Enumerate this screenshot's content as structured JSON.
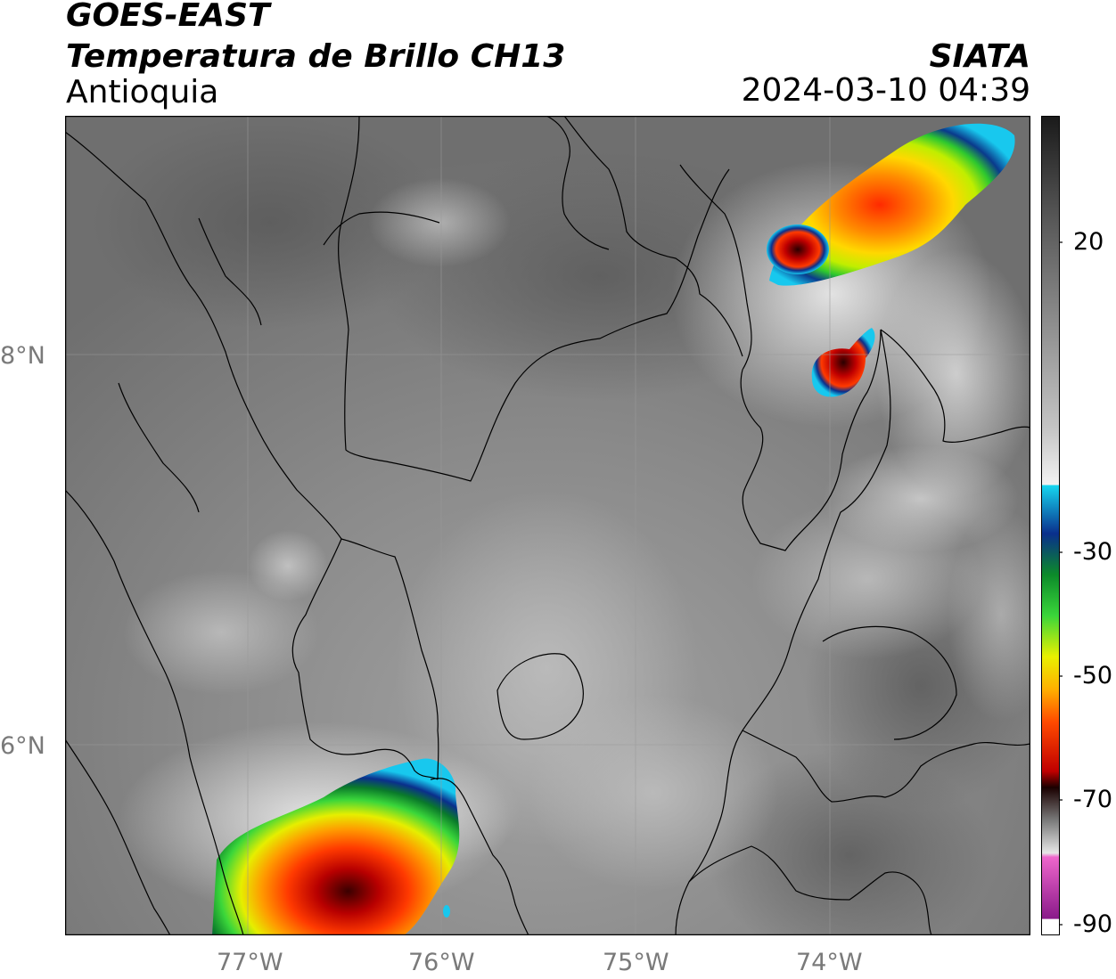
{
  "header": {
    "title_line1": "GOES-EAST",
    "title_line2": "Temperatura de Brillo CH13",
    "region": "Antioquia",
    "agency": "SIATA",
    "datetime": "2024-03-10 04:39"
  },
  "axes": {
    "lon_ticks": [
      "77°W",
      "76°W",
      "75°W",
      "74°W"
    ],
    "lat_ticks": [
      "8°N",
      "6°N"
    ]
  },
  "colorbar": {
    "ticks": [
      "20",
      "-30",
      "-50",
      "-70",
      "-90"
    ],
    "gradient": [
      "#1a1a1a",
      "#6e6e6e",
      "#bdbdbd",
      "#f4f4f4",
      "#16d6f0",
      "#0a2f8c",
      "#0c8a2a",
      "#3ad63a",
      "#e8f000",
      "#ffb000",
      "#ff4a00",
      "#c00000",
      "#2a0000",
      "#7a7a7a",
      "#d8d8d8",
      "#ee66cc",
      "#8a1a8a"
    ]
  },
  "colors": {
    "land": "#7d7d7d",
    "border": "#000000",
    "tick_text": "#7a7a7a"
  }
}
